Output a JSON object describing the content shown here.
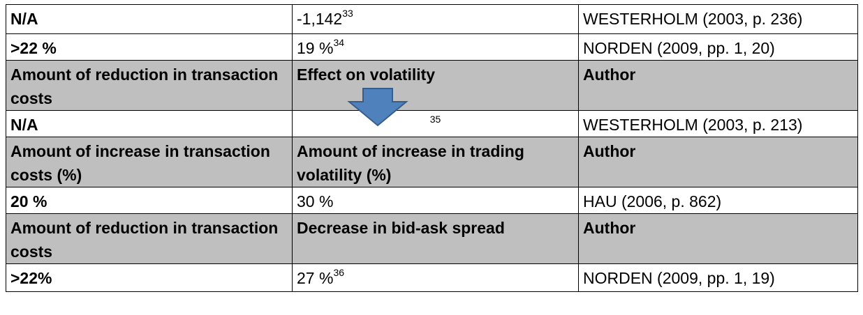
{
  "table": {
    "shaded_rows": [
      2,
      4,
      6
    ],
    "rows": [
      {
        "cells": [
          {
            "text": "N/A"
          },
          {
            "text": "-1,142",
            "sup": "33"
          },
          {
            "text": "WESTERHOLM (2003, p. 236)"
          }
        ]
      },
      {
        "cells": [
          {
            "text": ">22 %"
          },
          {
            "text": "19 %",
            "sup": "34"
          },
          {
            "text": "NORDEN (2009, pp. 1, 20)"
          }
        ]
      },
      {
        "cells": [
          {
            "text": "Amount of reduction in transaction costs"
          },
          {
            "text": "Effect on volatility"
          },
          {
            "text": "Author"
          }
        ]
      },
      {
        "cells": [
          {
            "text": "N/A"
          },
          {
            "sup": "35"
          },
          {
            "text": "WESTERHOLM (2003, p. 213)"
          }
        ]
      },
      {
        "cells": [
          {
            "text": "Amount of increase in transaction costs (%)"
          },
          {
            "text": "Amount of increase in trading volatility (%)"
          },
          {
            "text": "Author"
          }
        ]
      },
      {
        "cells": [
          {
            "text": "20 %"
          },
          {
            "text": "30 %"
          },
          {
            "text": "HAU (2006, p. 862)"
          }
        ]
      },
      {
        "cells": [
          {
            "text": "Amount of reduction in transaction costs"
          },
          {
            "text": "Decrease in bid-ask spread"
          },
          {
            "text": "Author"
          }
        ]
      },
      {
        "cells": [
          {
            "text": ">22%"
          },
          {
            "text": "27 %",
            "sup": "36"
          },
          {
            "text": "NORDEN (2009, pp. 1, 19)"
          }
        ]
      }
    ]
  }
}
